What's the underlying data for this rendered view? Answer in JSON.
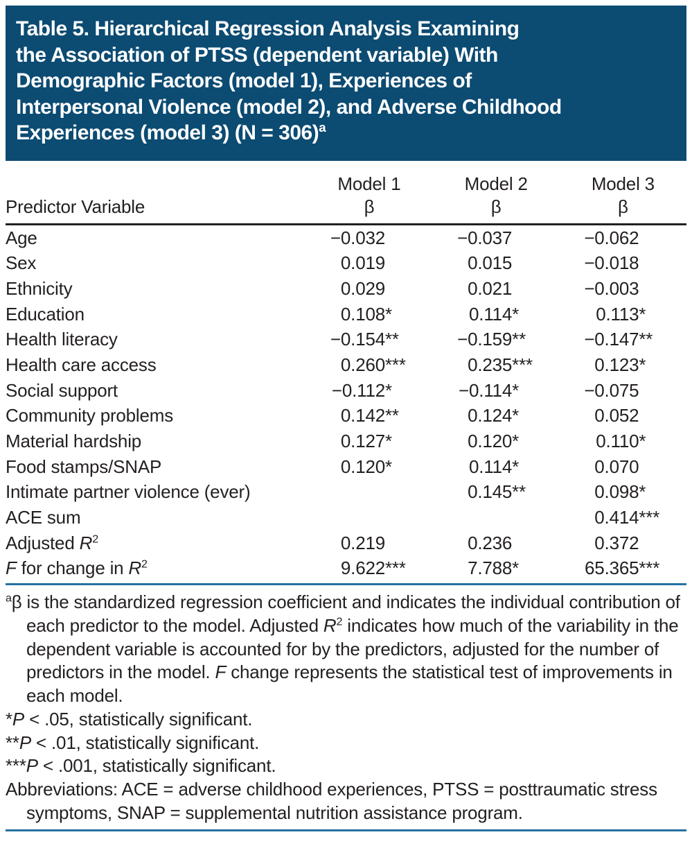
{
  "colors": {
    "title_background": "#0C4B72",
    "title_text": "#FFFFFF",
    "body_text": "#231F20",
    "header_rule": "#231F20",
    "blue_rule": "#2470A0"
  },
  "table": {
    "title": {
      "lines": [
        "Table 5. Hierarchical Regression Analysis Examining",
        "the Association of PTSS (dependent variable) With",
        "Demographic Factors (model 1), Experiences of",
        "Interpersonal Violence (model 2), and Adverse Childhood",
        "Experiences (model 3) (N = 306)"
      ],
      "footnote_marker": "a"
    },
    "columns": {
      "predictor_header": "Predictor Variable",
      "models": [
        "Model 1",
        "Model 2",
        "Model 3"
      ],
      "beta_symbol": "β"
    },
    "rows": [
      {
        "label": [
          {
            "t": "Age"
          }
        ],
        "values": [
          "−0.032",
          "−0.037",
          "−0.062"
        ]
      },
      {
        "label": [
          {
            "t": "Sex"
          }
        ],
        "values": [
          "0.019",
          "0.015",
          "−0.018"
        ]
      },
      {
        "label": [
          {
            "t": "Ethnicity"
          }
        ],
        "values": [
          "0.029",
          "0.021",
          "−0.003"
        ]
      },
      {
        "label": [
          {
            "t": "Education"
          }
        ],
        "values": [
          "0.108*",
          "0.114*",
          "0.113*"
        ]
      },
      {
        "label": [
          {
            "t": "Health literacy"
          }
        ],
        "values": [
          "−0.154**",
          "−0.159**",
          "−0.147**"
        ]
      },
      {
        "label": [
          {
            "t": "Health care access"
          }
        ],
        "values": [
          "0.260***",
          "0.235***",
          "0.123*"
        ]
      },
      {
        "label": [
          {
            "t": "Social support"
          }
        ],
        "values": [
          "−0.112*",
          "−0.114*",
          "−0.075"
        ]
      },
      {
        "label": [
          {
            "t": "Community problems"
          }
        ],
        "values": [
          "0.142**",
          "0.124*",
          "0.052"
        ]
      },
      {
        "label": [
          {
            "t": "Material hardship"
          }
        ],
        "values": [
          "0.127*",
          "0.120*",
          "0.110*"
        ]
      },
      {
        "label": [
          {
            "t": "Food stamps/SNAP"
          }
        ],
        "values": [
          "0.120*",
          "0.114*",
          "0.070"
        ]
      },
      {
        "label": [
          {
            "t": "Intimate partner violence (ever)"
          }
        ],
        "values": [
          "",
          "0.145**",
          "0.098*"
        ]
      },
      {
        "label": [
          {
            "t": "ACE sum"
          }
        ],
        "values": [
          "",
          "",
          "0.414***"
        ]
      },
      {
        "label": [
          {
            "t": "Adjusted "
          },
          {
            "t": "R",
            "i": true
          },
          {
            "t": "2",
            "sup": true
          }
        ],
        "values": [
          "0.219",
          "0.236",
          "0.372"
        ]
      },
      {
        "label": [
          {
            "t": "F",
            "i": true
          },
          {
            "t": " for change in "
          },
          {
            "t": "R",
            "i": true
          },
          {
            "t": "2",
            "sup": true
          }
        ],
        "values": [
          "9.622***",
          "7.788*",
          "65.365***"
        ]
      }
    ]
  },
  "footnotes": [
    {
      "hanging": true,
      "segments": [
        {
          "t": "a",
          "sup": true
        },
        {
          "t": "β is the standardized regression coefficient and indicates the individual contribution of each predictor to the model. Adjusted "
        },
        {
          "t": "R",
          "i": true
        },
        {
          "t": "2",
          "sup": true
        },
        {
          "t": " indicates how much of the variability in the dependent variable is accounted for by the predictors, adjusted for the number of predictors in the model. "
        },
        {
          "t": "F",
          "i": true
        },
        {
          "t": " change represents the statistical test of improvements in each model."
        }
      ]
    },
    {
      "hanging": false,
      "segments": [
        {
          "t": "*"
        },
        {
          "t": "P",
          "i": true
        },
        {
          "t": " < .05, statistically significant."
        }
      ]
    },
    {
      "hanging": false,
      "segments": [
        {
          "t": "**"
        },
        {
          "t": "P",
          "i": true
        },
        {
          "t": " < .01, statistically significant."
        }
      ]
    },
    {
      "hanging": false,
      "segments": [
        {
          "t": "***"
        },
        {
          "t": "P",
          "i": true
        },
        {
          "t": " < .001, statistically significant."
        }
      ]
    },
    {
      "hanging": true,
      "segments": [
        {
          "t": "Abbreviations: ACE = adverse childhood experiences, PTSS = posttraumatic stress symptoms, SNAP = supplemental nutrition assistance program."
        }
      ]
    }
  ]
}
